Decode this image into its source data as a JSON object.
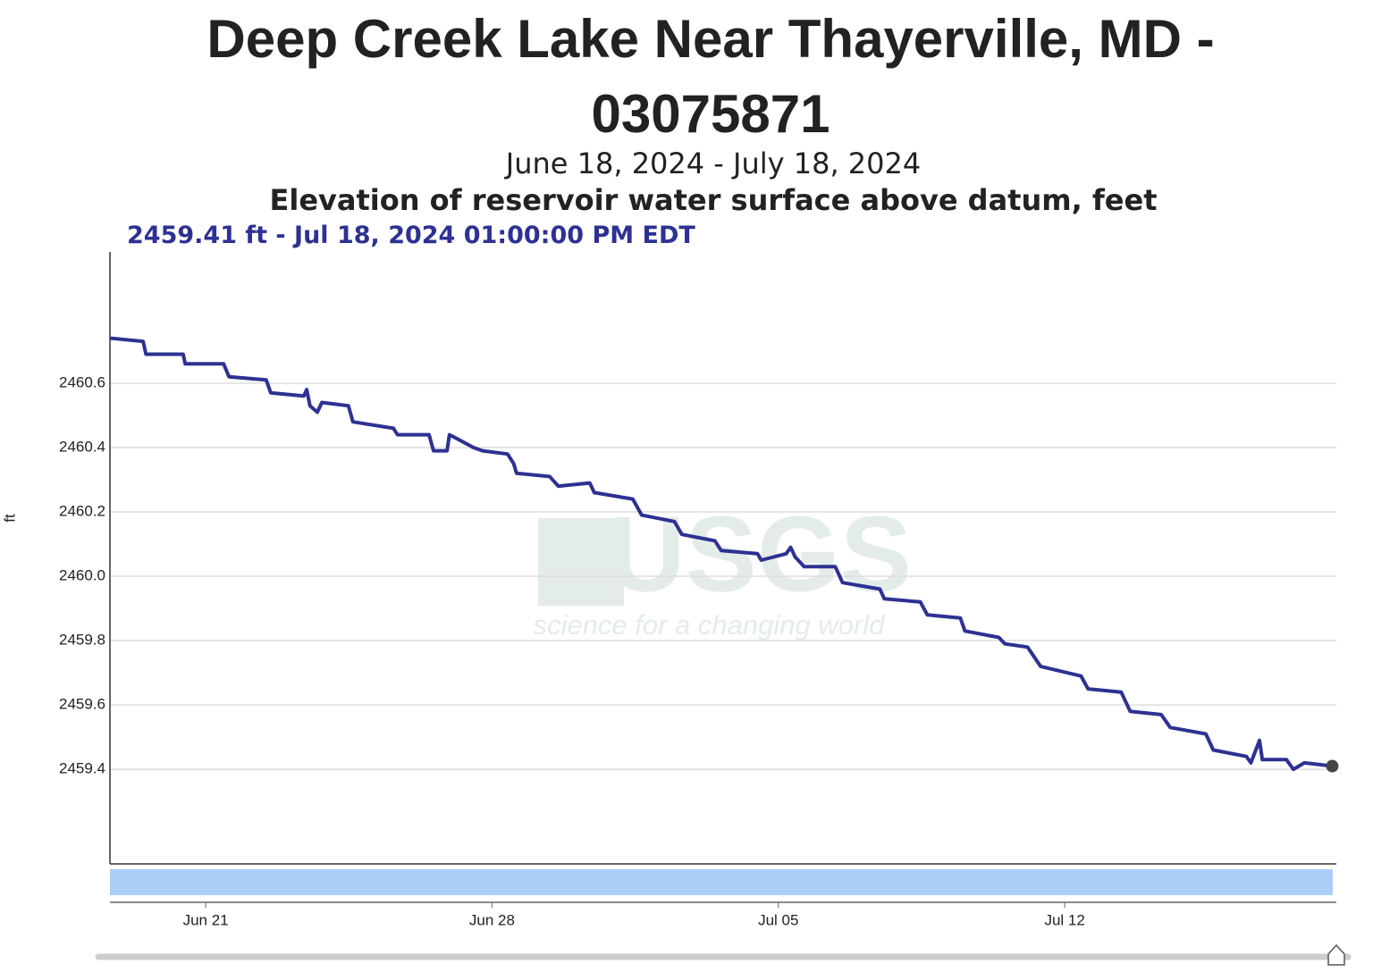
{
  "chart_data": {
    "type": "line",
    "title": "Deep Creek Lake Near Thayerville, MD - 03075871",
    "subtitle": "June 18, 2024 - July 18, 2024",
    "parameter": "Elevation of reservoir water surface above datum, feet",
    "tooltip": "2459.41 ft - Jul 18, 2024 01:00:00 PM EDT",
    "y_label": "ft",
    "watermark": {
      "logo": "USGS",
      "tagline": "science for a changing world"
    },
    "color": "#2e3192",
    "grid": true,
    "x": [
      0.66,
      1.47,
      1.54,
      2.45,
      2.5,
      3.44,
      3.57,
      4.48,
      4.59,
      5.4,
      5.47,
      5.55,
      5.73,
      5.84,
      6.49,
      6.6,
      7.59,
      7.69,
      8.46,
      8.57,
      8.9,
      8.96,
      9.11,
      9.55,
      9.77,
      10.38,
      10.53,
      10.6,
      11.41,
      11.62,
      12.39,
      12.5,
      13.44,
      13.66,
      14.46,
      14.64,
      15.45,
      15.6,
      16.49,
      16.58,
      17.19,
      17.3,
      17.41,
      17.63,
      18.39,
      18.57,
      19.48,
      19.59,
      20.47,
      20.64,
      21.45,
      21.56,
      22.39,
      22.54,
      23.09,
      23.41,
      24.4,
      24.57,
      25.38,
      25.6,
      26.36,
      26.58,
      27.45,
      27.63,
      28.44,
      28.55,
      28.76,
      28.83,
      29.42,
      29.59,
      29.86,
      30.54
    ],
    "values": [
      2460.74,
      2460.73,
      2460.69,
      2460.69,
      2460.66,
      2460.66,
      2460.62,
      2460.61,
      2460.57,
      2460.56,
      2460.58,
      2460.53,
      2460.51,
      2460.54,
      2460.53,
      2460.48,
      2460.46,
      2460.44,
      2460.44,
      2460.39,
      2460.39,
      2460.44,
      2460.43,
      2460.4,
      2460.39,
      2460.38,
      2460.35,
      2460.32,
      2460.31,
      2460.28,
      2460.29,
      2460.26,
      2460.24,
      2460.19,
      2460.17,
      2460.13,
      2460.11,
      2460.08,
      2460.07,
      2460.05,
      2460.07,
      2460.09,
      2460.06,
      2460.03,
      2460.03,
      2459.98,
      2459.96,
      2459.93,
      2459.92,
      2459.88,
      2459.87,
      2459.83,
      2459.81,
      2459.79,
      2459.78,
      2459.72,
      2459.69,
      2459.65,
      2459.64,
      2459.58,
      2459.57,
      2459.53,
      2459.51,
      2459.46,
      2459.44,
      2459.42,
      2459.49,
      2459.43,
      2459.43,
      2459.4,
      2459.42,
      2459.41
    ],
    "xlim": [
      0.66,
      30.64
    ],
    "xticks": [
      {
        "value": 3,
        "label": "Jun 21"
      },
      {
        "value": 10,
        "label": "Jun 28"
      },
      {
        "value": 17,
        "label": "Jul 05"
      },
      {
        "value": 24,
        "label": "Jul 12"
      }
    ],
    "ylim": [
      2459.106,
      2461.008
    ],
    "yticks": [
      2459.4,
      2459.6,
      2459.8,
      {
        "value": 2460,
        "label": "2460.0"
      },
      2460.2,
      2460.4,
      2460.6
    ]
  }
}
